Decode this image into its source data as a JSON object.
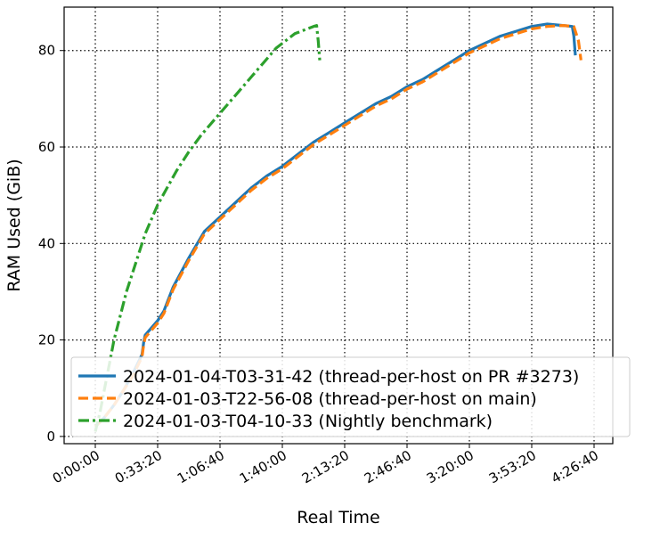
{
  "chart_data": {
    "type": "line",
    "xlabel": "Real Time",
    "ylabel": "RAM Used (GiB)",
    "xlim": [
      -1000,
      16600
    ],
    "ylim": [
      -1.5,
      89
    ],
    "grid": true,
    "legend_position": "bottom-right",
    "x_ticks": [
      {
        "value": 0,
        "label": "0:00:00"
      },
      {
        "value": 2000,
        "label": "0:33:20"
      },
      {
        "value": 4000,
        "label": "1:06:40"
      },
      {
        "value": 6000,
        "label": "1:40:00"
      },
      {
        "value": 8000,
        "label": "2:13:20"
      },
      {
        "value": 10000,
        "label": "2:46:40"
      },
      {
        "value": 12000,
        "label": "3:20:00"
      },
      {
        "value": 14000,
        "label": "3:53:20"
      },
      {
        "value": 16000,
        "label": "4:26:40"
      }
    ],
    "y_ticks": [
      {
        "value": 0,
        "label": "0"
      },
      {
        "value": 20,
        "label": "20"
      },
      {
        "value": 40,
        "label": "40"
      },
      {
        "value": 60,
        "label": "60"
      },
      {
        "value": 80,
        "label": "80"
      }
    ],
    "series": [
      {
        "name": "2024-01-04-T03-31-42 (thread-per-host on PR #3273)",
        "color": "#1f77b4",
        "style": "solid",
        "x": [
          0,
          300,
          600,
          900,
          1200,
          1500,
          1550,
          1600,
          1800,
          2000,
          2200,
          2500,
          3000,
          3500,
          4000,
          4500,
          5000,
          5500,
          6000,
          6500,
          7000,
          7500,
          8000,
          8500,
          9000,
          9500,
          10000,
          10500,
          11000,
          11500,
          12000,
          12500,
          13000,
          13500,
          14000,
          14500,
          15000,
          15300,
          15350,
          15400
        ],
        "y": [
          2,
          4,
          6.5,
          9.5,
          13,
          17,
          19.5,
          21,
          22.5,
          24,
          26,
          31,
          37,
          42.5,
          45.5,
          48.5,
          51.5,
          54,
          56,
          58.5,
          61,
          63,
          65,
          67,
          69,
          70.5,
          72.5,
          74,
          76,
          78,
          80,
          81.5,
          83,
          84,
          85,
          85.5,
          85.2,
          85,
          83,
          79
        ]
      },
      {
        "name": "2024-01-03-T22-56-08 (thread-per-host on main)",
        "color": "#ff7f0e",
        "style": "dashed",
        "x": [
          0,
          300,
          600,
          900,
          1200,
          1500,
          1550,
          1600,
          1800,
          2000,
          2200,
          2500,
          3000,
          3500,
          4000,
          4500,
          5000,
          5500,
          6000,
          6500,
          7000,
          7500,
          8000,
          8500,
          9000,
          9500,
          10000,
          10500,
          11000,
          11500,
          12000,
          12500,
          13000,
          13500,
          14000,
          14500,
          15000,
          15350,
          15500,
          15580
        ],
        "y": [
          2,
          4,
          6.5,
          9.5,
          12.5,
          16.5,
          19,
          20.5,
          22,
          23.5,
          25.5,
          30.5,
          36.5,
          42,
          45,
          48,
          51,
          53.5,
          55.5,
          58,
          60.5,
          62.5,
          64.5,
          66.5,
          68.5,
          70,
          72,
          73.5,
          75.5,
          77.5,
          79.5,
          81,
          82.5,
          83.5,
          84.5,
          85,
          85.2,
          85,
          82,
          78
        ]
      },
      {
        "name": "2024-01-03-T04-10-33 (Nightly benchmark)",
        "color": "#2ca02c",
        "style": "dashdot",
        "x": [
          0,
          150,
          300,
          450,
          600,
          800,
          1000,
          1200,
          1400,
          1600,
          1800,
          2000,
          2300,
          2600,
          3000,
          3400,
          3800,
          4200,
          4600,
          5000,
          5400,
          5800,
          6100,
          6400,
          6600,
          6800,
          7000,
          7100,
          7150,
          7200
        ],
        "y": [
          1,
          5,
          10,
          15,
          20,
          25,
          30,
          34,
          38,
          42,
          45,
          48,
          51.5,
          55,
          59,
          62.5,
          65.5,
          68.5,
          71.5,
          74.5,
          77.5,
          80.5,
          82,
          83.5,
          84,
          84.5,
          85,
          85.2,
          82,
          78
        ]
      }
    ]
  }
}
